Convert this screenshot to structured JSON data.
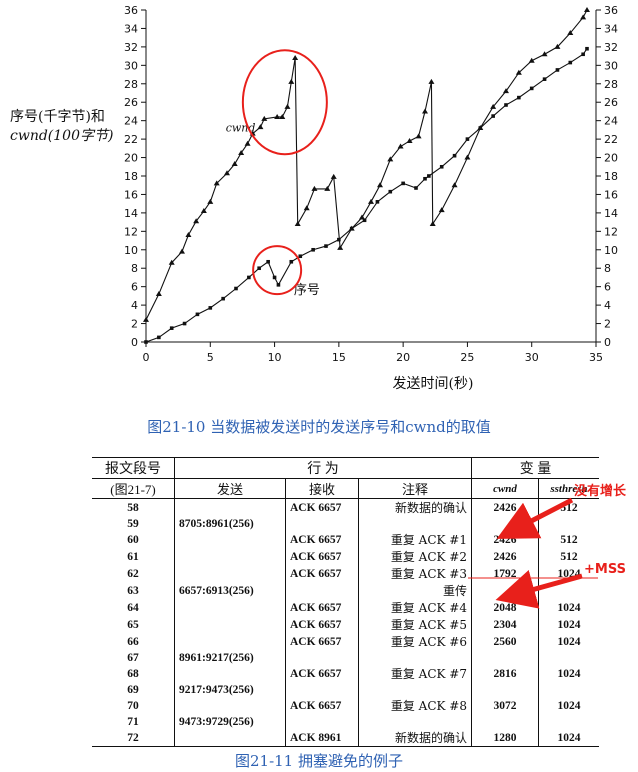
{
  "chart_data": {
    "type": "line",
    "ylabel_lines": [
      "序号(千字节)和",
      "cwnd(100字节)"
    ],
    "xlabel": "发送时间(秒)",
    "xlim": [
      0,
      35
    ],
    "ylim": [
      0,
      36
    ],
    "x_ticks": [
      0,
      5,
      10,
      15,
      20,
      25,
      30,
      35
    ],
    "y_ticks": [
      0,
      2,
      4,
      6,
      8,
      10,
      12,
      14,
      16,
      18,
      20,
      22,
      24,
      26,
      28,
      30,
      32,
      34,
      36
    ],
    "grid": false,
    "series": [
      {
        "name": "cwnd",
        "marker": "triangle",
        "points": [
          [
            0,
            2.4
          ],
          [
            1,
            5.2
          ],
          [
            2,
            8.6
          ],
          [
            2.8,
            9.8
          ],
          [
            3.3,
            11.6
          ],
          [
            3.9,
            13.1
          ],
          [
            4.5,
            14.2
          ],
          [
            5,
            15.2
          ],
          [
            5.5,
            17.2
          ],
          [
            6.3,
            18.3
          ],
          [
            6.9,
            19.3
          ],
          [
            7.4,
            20.5
          ],
          [
            7.9,
            21.5
          ],
          [
            8.3,
            22.6
          ],
          [
            8.9,
            23.3
          ],
          [
            9.2,
            24.2
          ],
          [
            10.2,
            24.4
          ],
          [
            10.6,
            24.4
          ],
          [
            11,
            25.5
          ],
          [
            11.3,
            28.2
          ],
          [
            11.6,
            30.8
          ],
          [
            11.8,
            12.8
          ],
          [
            12.5,
            14.5
          ],
          [
            13.1,
            16.6
          ],
          [
            14.1,
            16.6
          ],
          [
            14.6,
            17.9
          ],
          [
            15.1,
            10.2
          ],
          [
            16,
            12.3
          ],
          [
            16.8,
            13.5
          ],
          [
            17.5,
            15.2
          ],
          [
            18.2,
            17
          ],
          [
            19,
            19.8
          ],
          [
            19.8,
            21.2
          ],
          [
            20.5,
            21.8
          ],
          [
            21.2,
            22.3
          ],
          [
            21.7,
            25
          ],
          [
            22.2,
            28.2
          ],
          [
            22.3,
            12.8
          ],
          [
            23,
            14.3
          ],
          [
            24,
            17
          ],
          [
            25,
            20
          ],
          [
            26,
            23.2
          ],
          [
            27,
            25.5
          ],
          [
            28,
            27.2
          ],
          [
            29,
            29.2
          ],
          [
            30,
            30.5
          ],
          [
            31,
            31.2
          ],
          [
            32,
            32
          ],
          [
            33,
            33.5
          ],
          [
            34,
            35.2
          ],
          [
            34.3,
            36
          ]
        ]
      },
      {
        "name": "序号",
        "marker": "square",
        "points": [
          [
            0,
            0
          ],
          [
            1,
            0.5
          ],
          [
            2,
            1.5
          ],
          [
            3,
            2
          ],
          [
            4,
            3
          ],
          [
            5,
            3.7
          ],
          [
            6,
            4.7
          ],
          [
            7,
            5.8
          ],
          [
            8,
            7
          ],
          [
            8.8,
            8
          ],
          [
            9.5,
            8.7
          ],
          [
            10,
            7
          ],
          [
            10.3,
            6.2
          ],
          [
            11.3,
            8.7
          ],
          [
            12,
            9.3
          ],
          [
            13,
            10
          ],
          [
            14,
            10.4
          ],
          [
            15,
            11.1
          ],
          [
            16,
            12.3
          ],
          [
            17,
            13.2
          ],
          [
            18,
            15.2
          ],
          [
            19,
            16.3
          ],
          [
            20,
            17.2
          ],
          [
            21,
            16.7
          ],
          [
            21.7,
            17.7
          ],
          [
            22,
            18
          ],
          [
            23,
            19
          ],
          [
            24,
            20.2
          ],
          [
            25,
            22
          ],
          [
            26,
            23.2
          ],
          [
            27,
            24.5
          ],
          [
            28,
            25.7
          ],
          [
            29,
            26.5
          ],
          [
            30,
            27.5
          ],
          [
            31,
            28.5
          ],
          [
            32,
            29.5
          ],
          [
            33,
            30.3
          ],
          [
            34,
            31.2
          ],
          [
            34.3,
            31.8
          ]
        ]
      }
    ],
    "annotations": [
      "cwnd",
      "序号"
    ]
  },
  "captions": {
    "figure_chart": "图21-10   当数据被发送时的发送序号和cwnd的取值",
    "figure_table": "图21-11   拥塞避免的例子"
  },
  "table": {
    "group_headers": [
      "报文段号",
      "行 为",
      "变 量"
    ],
    "sub_headers": [
      "(图21-7)",
      "发送",
      "接收",
      "注释",
      "cwnd",
      "ssthresh"
    ],
    "rows": [
      {
        "seg": "58",
        "send": "",
        "recv": "ACK 6657",
        "note": "新数据的确认",
        "cwnd": "2426",
        "ssthresh": "512"
      },
      {
        "seg": "59",
        "send": "8705:8961(256)",
        "recv": "",
        "note": "",
        "cwnd": "",
        "ssthresh": ""
      },
      {
        "seg": "60",
        "send": "",
        "recv": "ACK 6657",
        "note": "重复 ACK #1",
        "cwnd": "2426",
        "ssthresh": "512"
      },
      {
        "seg": "61",
        "send": "",
        "recv": "ACK 6657",
        "note": "重复 ACK #2",
        "cwnd": "2426",
        "ssthresh": "512"
      },
      {
        "seg": "62",
        "send": "",
        "recv": "ACK 6657",
        "note": "重复 ACK #3",
        "cwnd": "1792",
        "ssthresh": "1024"
      },
      {
        "seg": "63",
        "send": "6657:6913(256)",
        "recv": "",
        "note": "重传",
        "cwnd": "",
        "ssthresh": ""
      },
      {
        "seg": "64",
        "send": "",
        "recv": "ACK 6657",
        "note": "重复 ACK #4",
        "cwnd": "2048",
        "ssthresh": "1024"
      },
      {
        "seg": "65",
        "send": "",
        "recv": "ACK 6657",
        "note": "重复 ACK #5",
        "cwnd": "2304",
        "ssthresh": "1024"
      },
      {
        "seg": "66",
        "send": "",
        "recv": "ACK 6657",
        "note": "重复 ACK #6",
        "cwnd": "2560",
        "ssthresh": "1024"
      },
      {
        "seg": "67",
        "send": "8961:9217(256)",
        "recv": "",
        "note": "",
        "cwnd": "",
        "ssthresh": ""
      },
      {
        "seg": "68",
        "send": "",
        "recv": "ACK 6657",
        "note": "重复 ACK #7",
        "cwnd": "2816",
        "ssthresh": "1024"
      },
      {
        "seg": "69",
        "send": "9217:9473(256)",
        "recv": "",
        "note": "",
        "cwnd": "",
        "ssthresh": ""
      },
      {
        "seg": "70",
        "send": "",
        "recv": "ACK 6657",
        "note": "重复 ACK #8",
        "cwnd": "3072",
        "ssthresh": "1024"
      },
      {
        "seg": "71",
        "send": "9473:9729(256)",
        "recv": "",
        "note": "",
        "cwnd": "",
        "ssthresh": ""
      },
      {
        "seg": "72",
        "send": "",
        "recv": "ACK 8961",
        "note": "新数据的确认",
        "cwnd": "1280",
        "ssthresh": "1024"
      }
    ]
  },
  "annotations": {
    "no_growth": "没有增长",
    "plus_mss": "+MSS"
  },
  "colors": {
    "axis": "#111111",
    "caption": "#2f62b3",
    "highlight": "#e8201b"
  }
}
